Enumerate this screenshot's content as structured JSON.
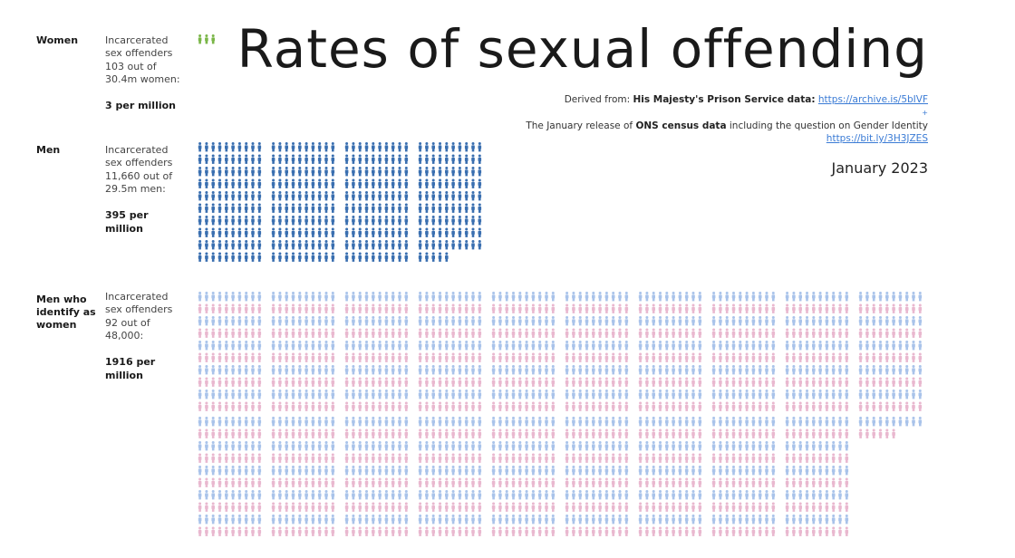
{
  "title": "Rates of sexual offending",
  "sources": {
    "line1_prefix": "Derived from:",
    "line1_bold": "His Majesty's Prison Service data:",
    "line1_link": "https://archive.is/5bIVF",
    "plus": "+",
    "line2_prefix": "The January release of",
    "line2_bold": "ONS census data",
    "line2_suffix": "including the question on Gender Identity",
    "line2_link": "https://bit.ly/3H3JZES"
  },
  "date": "January 2023",
  "colors": {
    "women_icon": "#7ab648",
    "men_icon": "#3a6fb0",
    "trans_blue": "#a9c3ea",
    "trans_pink": "#e9b8cf",
    "link": "#3a7bd5"
  },
  "groups": [
    {
      "label": "Women",
      "description": "Incarcerated\nsex offenders\n103 out of\n30.4m women:",
      "rate_text": "3 per million"
    },
    {
      "label": "Men",
      "description": "Incarcerated\nsex offenders\n11,660 out of\n29.5m men:",
      "rate_text": "395 per million"
    },
    {
      "label": "Men who identify as women",
      "description": "Incarcerated\nsex offenders\n92 out of\n48,000:",
      "rate_text": "1916 per million"
    }
  ],
  "chart_data": {
    "type": "pictograph",
    "title": "Rates of sexual offending",
    "unit": "icons per million",
    "categories": [
      "Women",
      "Men",
      "Men who identify as women"
    ],
    "values": [
      3,
      395,
      1916
    ],
    "icon_colors": [
      "#7ab648",
      "#3a6fb0",
      "blue/pink alternating rows"
    ]
  }
}
